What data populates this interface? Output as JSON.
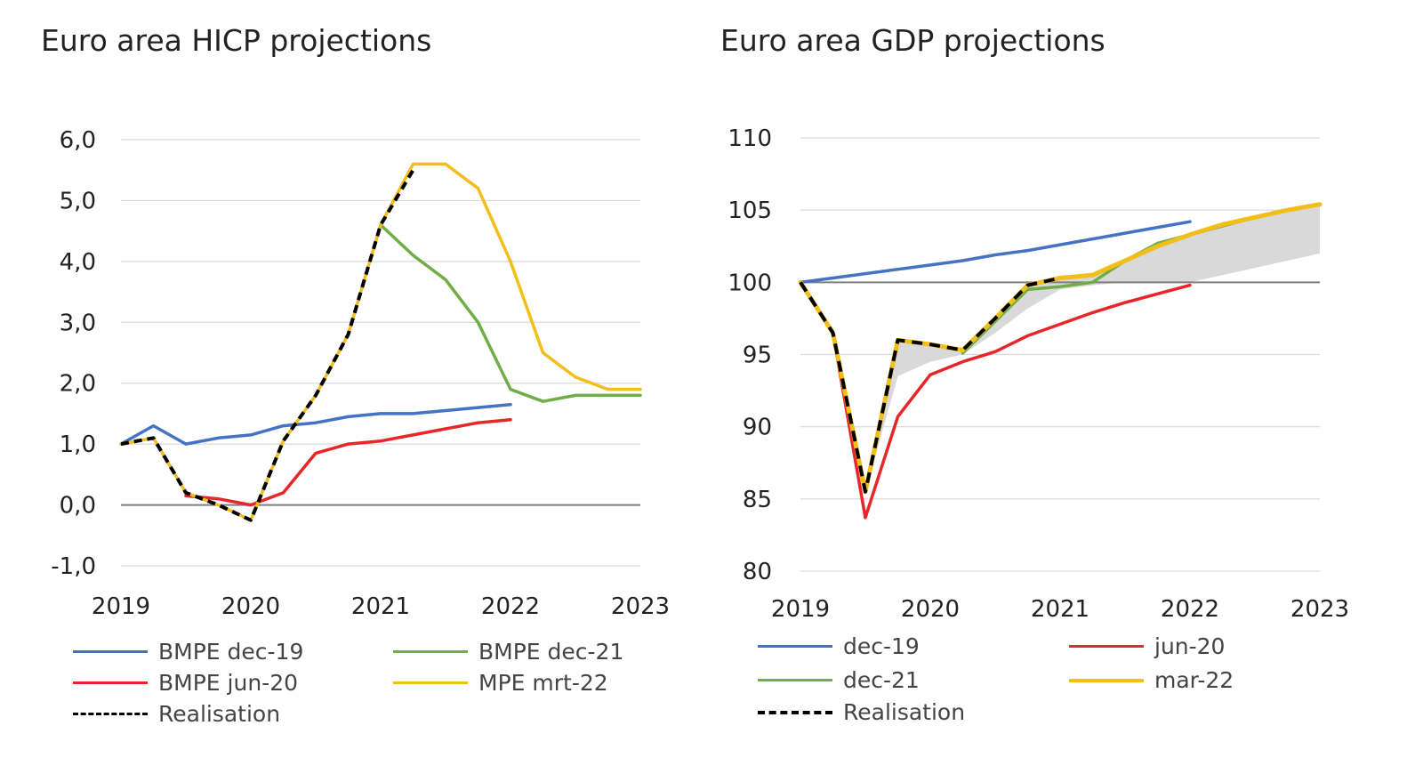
{
  "chart_data": [
    {
      "type": "line",
      "title": "Euro area HICP projections",
      "xlabel": "",
      "ylabel": "",
      "xlim": [
        2019,
        2023
      ],
      "ylim": [
        -1,
        6
      ],
      "x_ticks": [
        "2019",
        "2020",
        "2021",
        "2022",
        "2023"
      ],
      "y_ticks": [
        "-1,0",
        "0,0",
        "1,0",
        "2,0",
        "3,0",
        "4,0",
        "5,0",
        "6,0"
      ],
      "grid": true,
      "legend_position": "bottom",
      "series": [
        {
          "name": "BMPE dec-19",
          "color": "#4472C4",
          "dash": "solid",
          "x": [
            2019,
            2019.25,
            2019.5,
            2019.75,
            2020,
            2020.25,
            2020.5,
            2020.75,
            2021,
            2021.25,
            2021.5,
            2021.75,
            2022
          ],
          "y": [
            1.0,
            1.3,
            1.0,
            1.1,
            1.15,
            1.3,
            1.35,
            1.45,
            1.5,
            1.5,
            1.55,
            1.6,
            1.65
          ]
        },
        {
          "name": "BMPE jun-20",
          "color": "#E8262A",
          "dash": "solid",
          "x": [
            2019.5,
            2019.75,
            2020,
            2020.25,
            2020.5,
            2020.75,
            2021,
            2021.25,
            2021.5,
            2021.75,
            2022
          ],
          "y": [
            0.15,
            0.1,
            0.0,
            0.2,
            0.85,
            1.0,
            1.05,
            1.15,
            1.25,
            1.35,
            1.4
          ]
        },
        {
          "name": "BMPE dec-21",
          "color": "#70AD47",
          "dash": "solid",
          "x": [
            2021,
            2021.25,
            2021.5,
            2021.75,
            2022,
            2022.25,
            2022.5,
            2022.75,
            2023
          ],
          "y": [
            4.6,
            4.1,
            3.7,
            3.0,
            1.9,
            1.7,
            1.8,
            1.8,
            1.8
          ]
        },
        {
          "name": "MPE mrt-22",
          "color": "#F2BE1A",
          "dash": "solid",
          "x": [
            2019,
            2019.25,
            2019.5,
            2019.75,
            2020,
            2020.25,
            2020.5,
            2020.75,
            2021,
            2021.25,
            2021.5,
            2021.75,
            2022,
            2022.25,
            2022.5,
            2022.75,
            2023
          ],
          "y": [
            1.0,
            1.1,
            0.2,
            0.0,
            -0.25,
            1.05,
            1.8,
            2.8,
            4.6,
            5.6,
            5.6,
            5.2,
            4.0,
            2.5,
            2.1,
            1.9,
            1.9
          ]
        },
        {
          "name": "Realisation",
          "color": "#000000",
          "dash": "dashed",
          "x": [
            2019,
            2019.25,
            2019.5,
            2019.75,
            2020,
            2020.25,
            2020.5,
            2020.75,
            2021,
            2021.25
          ],
          "y": [
            1.0,
            1.1,
            0.2,
            0.0,
            -0.25,
            1.05,
            1.8,
            2.8,
            4.6,
            5.5
          ]
        }
      ]
    },
    {
      "type": "line",
      "title": "Euro area GDP projections",
      "xlabel": "",
      "ylabel": "",
      "xlim": [
        2019,
        2023
      ],
      "ylim": [
        80,
        110
      ],
      "x_ticks": [
        "2019",
        "2020",
        "2021",
        "2022",
        "2023"
      ],
      "y_ticks": [
        "80",
        "85",
        "90",
        "95",
        "100",
        "105",
        "110"
      ],
      "grid": true,
      "legend_position": "bottom",
      "band": {
        "fill": "#D9D9D9",
        "x": [
          2019,
          2019.25,
          2019.5,
          2019.75,
          2020,
          2020.25,
          2020.5,
          2020.75,
          2021,
          2021.25,
          2021.5,
          2021.75,
          2022,
          2022.25,
          2022.5,
          2022.75,
          2023
        ],
        "upper": [
          100,
          96.5,
          85.5,
          96.0,
          95.7,
          95.3,
          97.5,
          99.8,
          100.3,
          100.5,
          101.5,
          102.5,
          103.3,
          104.0,
          104.5,
          105.0,
          105.4
        ],
        "lower": [
          100,
          96.5,
          85.5,
          93.5,
          94.5,
          95.0,
          96.5,
          98.2,
          99.5,
          99.8,
          100.0,
          100.0,
          100.0,
          100.5,
          101.0,
          101.5,
          102.0
        ]
      },
      "series": [
        {
          "name": "dec-19",
          "color": "#4472C4",
          "dash": "solid",
          "x": [
            2019,
            2019.25,
            2019.5,
            2019.75,
            2020,
            2020.25,
            2020.5,
            2020.75,
            2021,
            2021.25,
            2021.5,
            2021.75,
            2022
          ],
          "y": [
            100,
            100.3,
            100.6,
            100.9,
            101.2,
            101.5,
            101.9,
            102.2,
            102.6,
            103.0,
            103.4,
            103.8,
            104.2
          ]
        },
        {
          "name": "jun-20",
          "color": "#E8262A",
          "dash": "solid",
          "x": [
            2019.25,
            2019.5,
            2019.75,
            2020,
            2020.25,
            2020.5,
            2020.75,
            2021,
            2021.25,
            2021.5,
            2021.75,
            2022
          ],
          "y": [
            96.5,
            83.7,
            90.7,
            93.6,
            94.5,
            95.2,
            96.3,
            97.1,
            97.9,
            98.6,
            99.2,
            99.8
          ]
        },
        {
          "name": "dec-21",
          "color": "#70AD47",
          "dash": "solid",
          "x": [
            2020.25,
            2020.5,
            2020.75,
            2021,
            2021.25,
            2021.5,
            2021.75,
            2022,
            2022.25,
            2022.5,
            2022.75,
            2023
          ],
          "y": [
            95.1,
            97.3,
            99.5,
            99.7,
            100.0,
            101.5,
            102.7,
            103.3,
            103.9,
            104.5,
            105.0,
            105.4
          ]
        },
        {
          "name": "mar-22",
          "color": "#F2BE1A",
          "dash": "solid",
          "x": [
            2019,
            2019.25,
            2019.5,
            2019.75,
            2020,
            2020.25,
            2020.5,
            2020.75,
            2021,
            2021.25,
            2021.5,
            2021.75,
            2022,
            2022.25,
            2022.5,
            2022.75,
            2023
          ],
          "y": [
            100,
            96.5,
            85.5,
            96.0,
            95.7,
            95.3,
            97.5,
            99.8,
            100.3,
            100.5,
            101.5,
            102.5,
            103.3,
            104.0,
            104.5,
            105.0,
            105.4
          ]
        },
        {
          "name": "Realisation",
          "color": "#000000",
          "dash": "dashed",
          "x": [
            2019,
            2019.25,
            2019.5,
            2019.75,
            2020,
            2020.25,
            2020.5,
            2020.75,
            2021
          ],
          "y": [
            100,
            96.5,
            85.5,
            96.0,
            95.7,
            95.3,
            97.5,
            99.8,
            100.3
          ]
        }
      ]
    }
  ]
}
